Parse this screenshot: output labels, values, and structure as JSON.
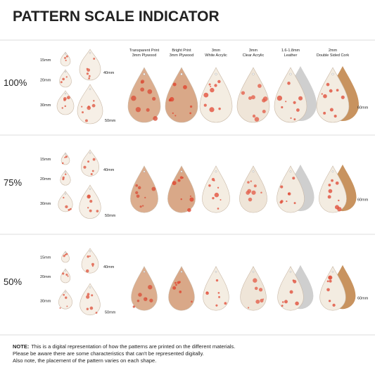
{
  "header": {
    "title": "PATTERN SCALE INDICATOR"
  },
  "columns": [
    {
      "line1": "Transparent Print",
      "line2": "3mm Plywood"
    },
    {
      "line1": "Bright Print",
      "line2": "3mm Plywood"
    },
    {
      "line1": "3mm",
      "line2": "White Acrylic"
    },
    {
      "line1": "3mm",
      "line2": "Clear Acrylic"
    },
    {
      "line1": "1.6-1.8mm",
      "line2": "Leather"
    },
    {
      "line1": "2mm",
      "line2": "Double Sided Cork"
    }
  ],
  "sections": [
    {
      "scale": "100%",
      "sizes": [
        "15mm",
        "20mm",
        "30mm",
        "40mm",
        "50mm"
      ],
      "material_size": "60mm"
    },
    {
      "scale": "75%",
      "sizes": [
        "15mm",
        "20mm",
        "30mm",
        "40mm",
        "50mm"
      ],
      "material_size": "60mm"
    },
    {
      "scale": "50%",
      "sizes": [
        "15mm",
        "20mm",
        "30mm",
        "40mm",
        "50mm"
      ],
      "material_size": "60mm"
    }
  ],
  "note": {
    "label": "NOTE:",
    "lines": [
      "This is a digital representation of how the patterns are printed on the different materials.",
      "Please be aware there are some characteristics that can't be represented digitally.",
      "Also note, the placement of the pattern varies on each shape."
    ]
  }
}
